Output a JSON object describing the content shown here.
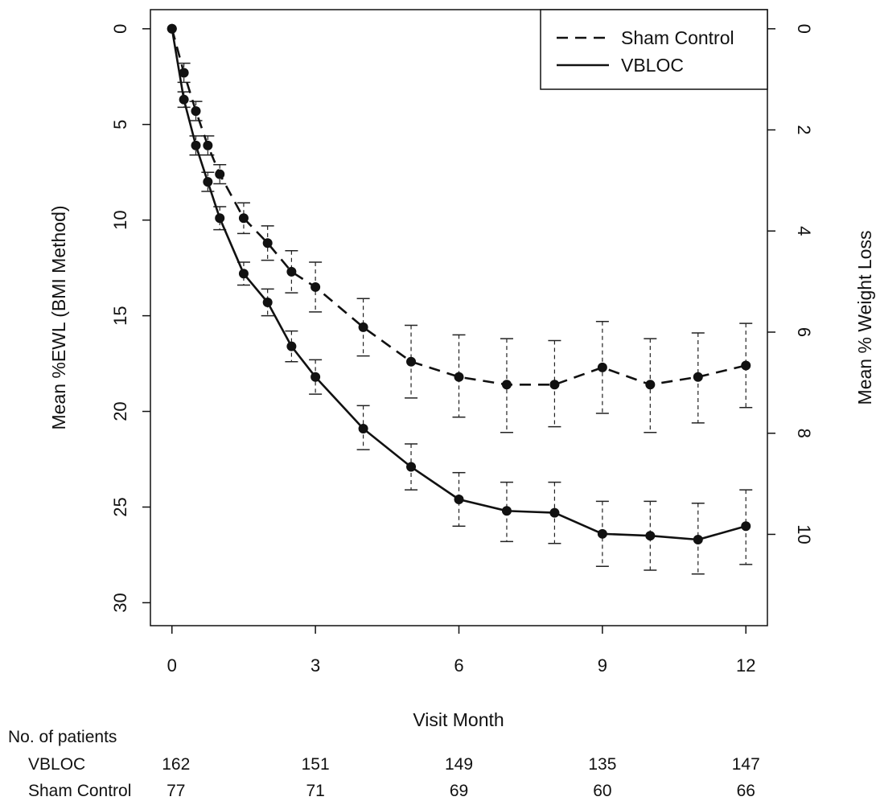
{
  "chart_data": {
    "type": "line",
    "title": "",
    "xlabel": "Visit Month",
    "ylabel": "Mean %EWL (BMI Method)",
    "ylabel_right": "Mean % Weight Loss",
    "xlim": [
      -0.45,
      12.45
    ],
    "ylim": [
      31.2,
      -1.0
    ],
    "y_inverted": true,
    "x_ticks": [
      0,
      3,
      6,
      9,
      12
    ],
    "x_tick_labels": [
      "0",
      "3",
      "6",
      "9",
      "12"
    ],
    "y_ticks": [
      0,
      5,
      10,
      15,
      20,
      25,
      30
    ],
    "y_tick_labels": [
      "0",
      "5",
      "10",
      "15",
      "20",
      "25",
      "30"
    ],
    "y_right_ticks": [
      0,
      2,
      4,
      6,
      8,
      10
    ],
    "y_right_tick_labels": [
      "0",
      "2",
      "4",
      "6",
      "8",
      "10"
    ],
    "y_right_per_left_unit": 0.3784,
    "grid": false,
    "legend_position": "top-right",
    "series": [
      {
        "name": "Sham Control",
        "line_style": "dashed",
        "color": "#111111",
        "x": [
          0,
          0.25,
          0.5,
          0.75,
          1.0,
          1.5,
          2.0,
          2.5,
          3.0,
          4.0,
          5.0,
          6.0,
          7.0,
          8.0,
          9.0,
          10.0,
          11.0,
          12.0
        ],
        "y": [
          0,
          2.3,
          4.3,
          6.1,
          7.6,
          9.9,
          11.2,
          12.7,
          13.5,
          15.6,
          17.4,
          18.2,
          18.6,
          18.6,
          17.7,
          18.6,
          18.2,
          17.6
        ],
        "err_lo": [
          0,
          1.8,
          3.8,
          5.6,
          7.1,
          9.1,
          10.3,
          11.6,
          12.2,
          14.1,
          15.5,
          16.0,
          16.2,
          16.3,
          15.3,
          16.2,
          15.9,
          15.4
        ],
        "err_hi": [
          0,
          2.8,
          4.8,
          6.6,
          8.1,
          10.7,
          12.1,
          13.8,
          14.8,
          17.1,
          19.3,
          20.3,
          21.1,
          20.8,
          20.1,
          21.1,
          20.6,
          19.8
        ]
      },
      {
        "name": "VBLOC",
        "line_style": "solid",
        "color": "#111111",
        "x": [
          0,
          0.25,
          0.5,
          0.75,
          1.0,
          1.5,
          2.0,
          2.5,
          3.0,
          4.0,
          5.0,
          6.0,
          7.0,
          8.0,
          9.0,
          10.0,
          11.0,
          12.0
        ],
        "y": [
          0,
          3.7,
          6.1,
          8.0,
          9.9,
          12.8,
          14.3,
          16.6,
          18.2,
          20.9,
          22.9,
          24.6,
          25.2,
          25.3,
          26.4,
          26.5,
          26.7,
          26.0
        ],
        "err_lo": [
          0,
          3.3,
          5.6,
          7.5,
          9.3,
          12.2,
          13.6,
          15.8,
          17.3,
          19.7,
          21.7,
          23.2,
          23.7,
          23.7,
          24.7,
          24.7,
          24.8,
          24.1
        ],
        "err_hi": [
          0,
          4.1,
          6.6,
          8.5,
          10.5,
          13.4,
          15.0,
          17.4,
          19.1,
          22.0,
          24.1,
          26.0,
          26.8,
          26.9,
          28.1,
          28.3,
          28.5,
          28.0
        ]
      }
    ],
    "patients_table": {
      "header": "No. of patients",
      "months": [
        0,
        3,
        6,
        9,
        12
      ],
      "rows": [
        {
          "label": "VBLOC",
          "counts": [
            "162",
            "151",
            "149",
            "135",
            "147"
          ]
        },
        {
          "label": "Sham Control",
          "counts": [
            "77",
            "71",
            "69",
            "60",
            "66"
          ]
        }
      ]
    }
  }
}
